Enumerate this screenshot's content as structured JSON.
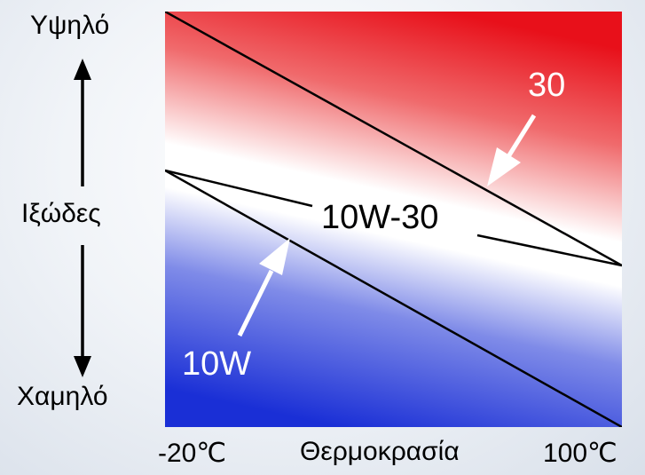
{
  "y_axis": {
    "high": "Υψηλό",
    "middle": "Ιξώδες",
    "low": "Χαμηλό"
  },
  "x_axis": {
    "min": "-20℃",
    "title": "Θερμοκρασία",
    "max": "100℃"
  },
  "lines": {
    "grade_30": "30",
    "grade_10w30": "10W-30",
    "grade_10w": "10W"
  },
  "colors": {
    "high": "#e8101a",
    "mid": "#ffffff",
    "low": "#1a2fd6"
  }
}
